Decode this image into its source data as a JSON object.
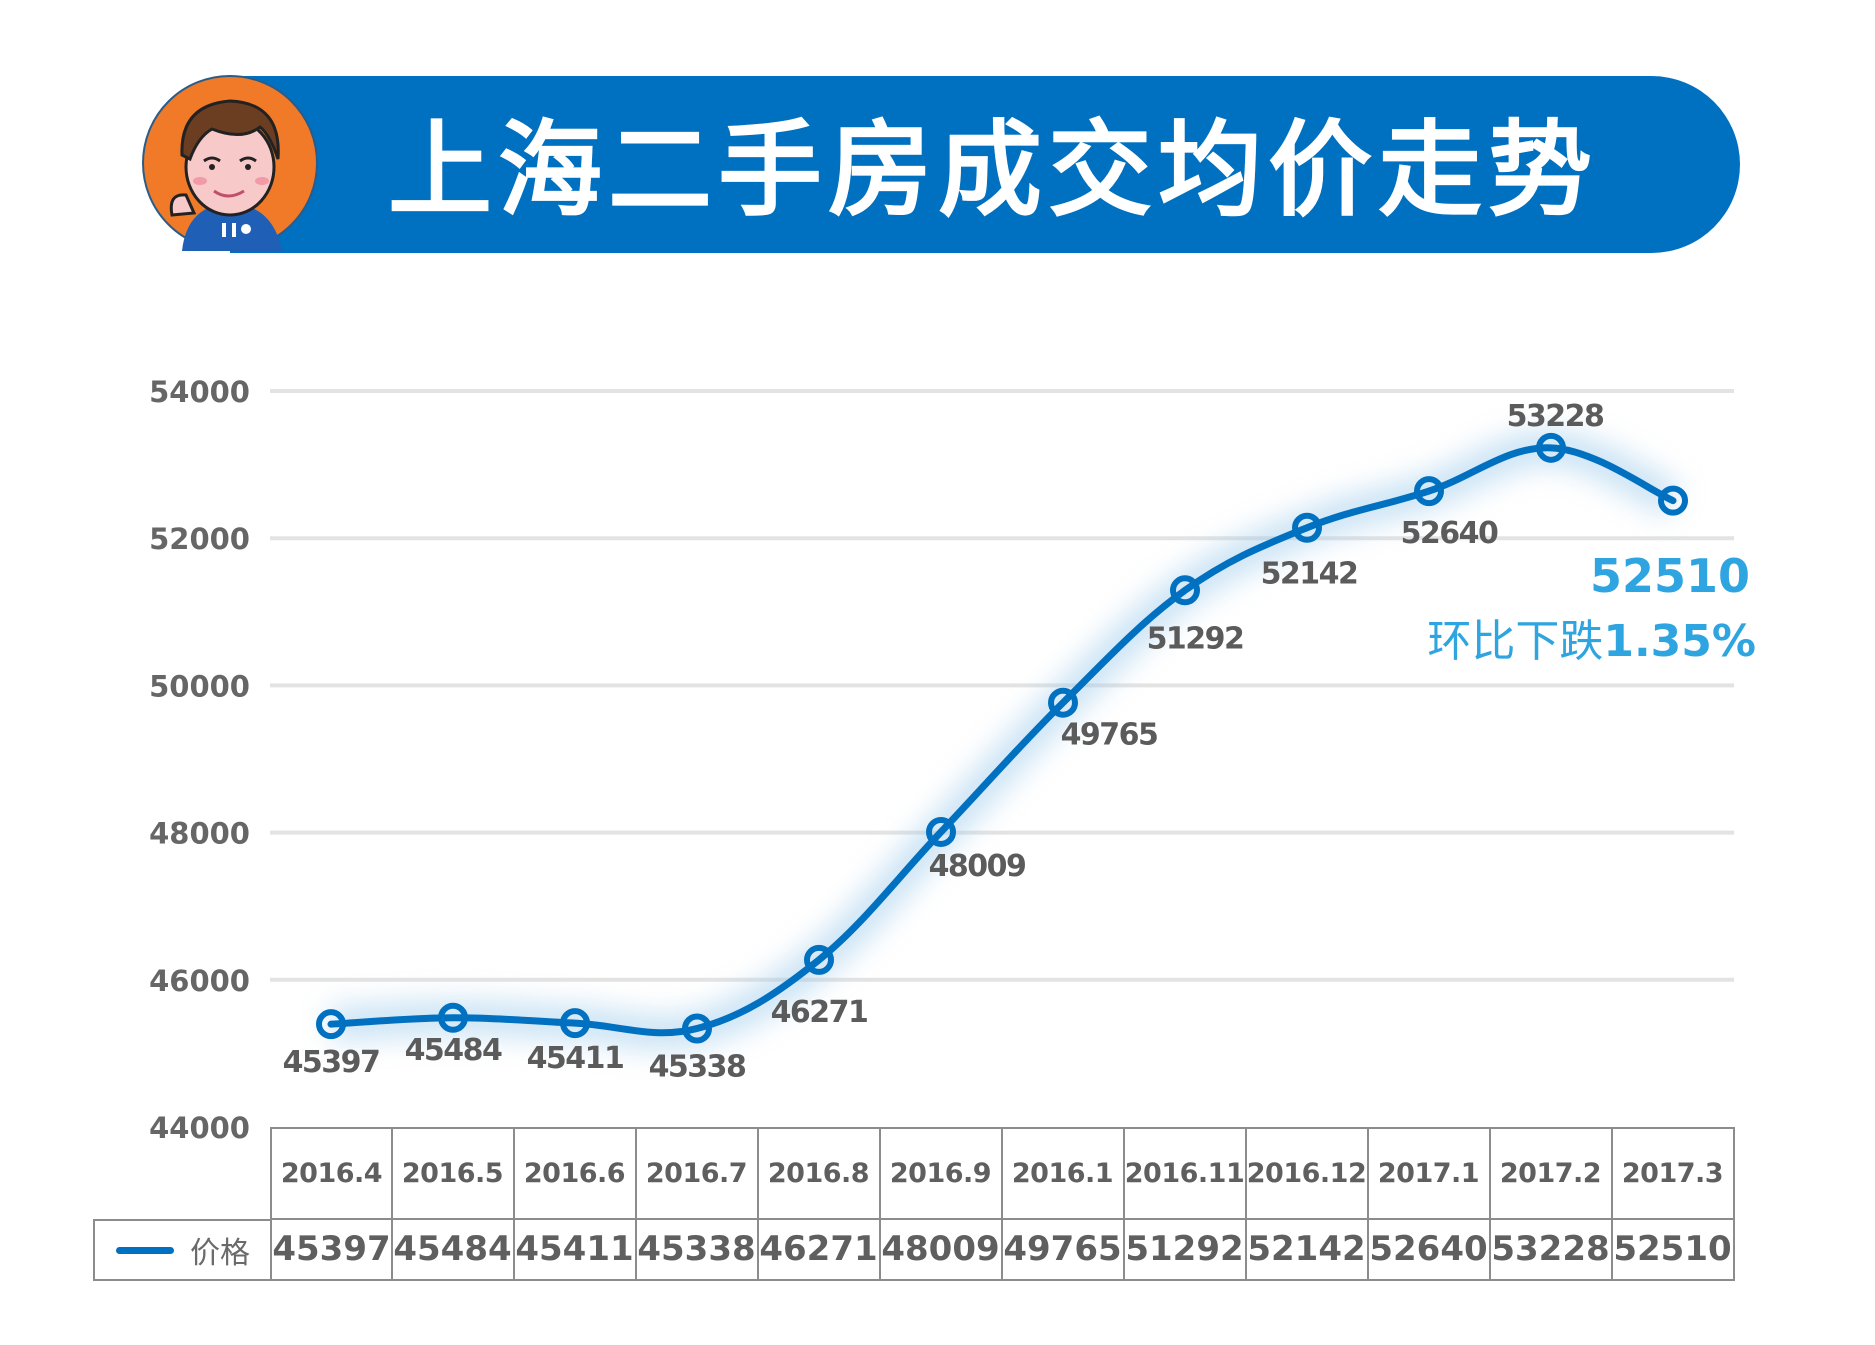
{
  "header": {
    "title": "上海二手房成交均价走势",
    "banner_color": "#0070c0",
    "avatar": "cartoon-boy-avatar"
  },
  "callout": {
    "value": "52510",
    "text_prefix": "环比下跌",
    "text_pct": "1.35%",
    "color": "#2ea4e0"
  },
  "legend": {
    "label": "价格",
    "color": "#0070c0"
  },
  "y_ticks": [
    "54000",
    "52000",
    "50000",
    "48000",
    "46000",
    "44000"
  ],
  "table": {
    "categories": [
      "2016.4",
      "2016.5",
      "2016.6",
      "2016.7",
      "2016.8",
      "2016.9",
      "2016.1",
      "2016.11",
      "2016.12",
      "2017.1",
      "2017.2",
      "2017.3"
    ],
    "values": [
      "45397",
      "45484",
      "45411",
      "45338",
      "46271",
      "48009",
      "49765",
      "51292",
      "52142",
      "52640",
      "53228",
      "52510"
    ]
  },
  "chart_data": {
    "type": "line",
    "title": "上海二手房成交均价走势",
    "categories": [
      "2016.4",
      "2016.5",
      "2016.6",
      "2016.7",
      "2016.8",
      "2016.9",
      "2016.1",
      "2016.11",
      "2016.12",
      "2017.1",
      "2017.2",
      "2017.3"
    ],
    "series": [
      {
        "name": "价格",
        "values": [
          45397,
          45484,
          45411,
          45338,
          46271,
          48009,
          49765,
          51292,
          52142,
          52640,
          53228,
          52510
        ],
        "color": "#0070c0"
      }
    ],
    "xlabel": "",
    "ylabel": "",
    "ylim": [
      44000,
      54000
    ],
    "yticks": [
      44000,
      46000,
      48000,
      50000,
      52000,
      54000
    ],
    "grid": true,
    "data_labels": true,
    "legend_position": "bottom-left (data table)",
    "annotations": [
      "52510",
      "环比下跌1.35%"
    ]
  }
}
